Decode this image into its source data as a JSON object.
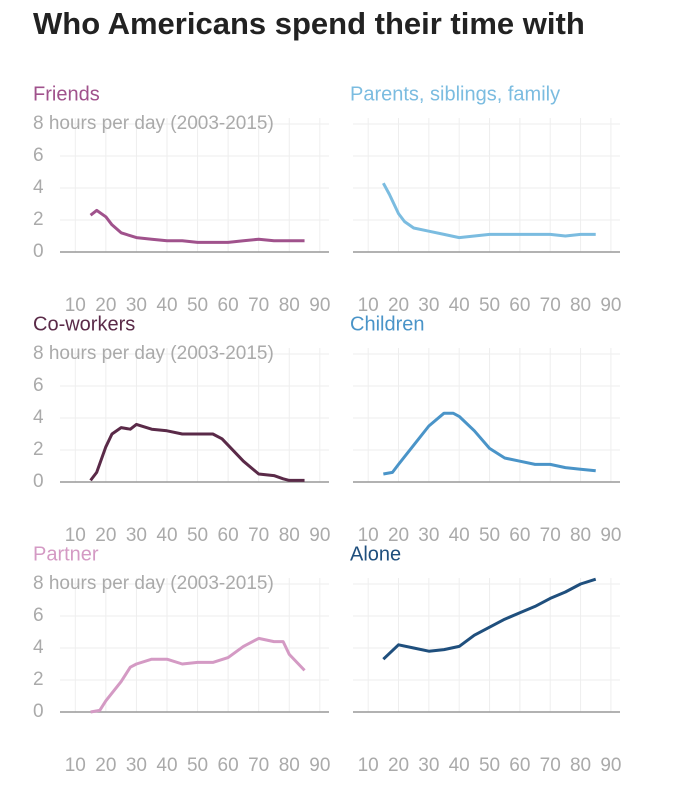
{
  "title": "Who Americans spend their time with",
  "chart_data": [
    {
      "type": "line",
      "title": "Friends",
      "color": "#a0528c",
      "show_ytick_labels": true,
      "x": [
        15,
        17,
        20,
        22,
        25,
        30,
        35,
        40,
        45,
        50,
        55,
        60,
        65,
        70,
        75,
        80,
        85
      ],
      "values": [
        2.3,
        2.6,
        2.2,
        1.7,
        1.2,
        0.9,
        0.8,
        0.7,
        0.7,
        0.6,
        0.6,
        0.6,
        0.7,
        0.8,
        0.7,
        0.7,
        0.7
      ],
      "xlim": [
        5,
        93
      ],
      "ylim": [
        0,
        8
      ],
      "xticks": [
        10,
        20,
        30,
        40,
        50,
        60,
        70,
        80,
        90
      ],
      "yticks": [
        0,
        2,
        4,
        6,
        {
          "value": 8,
          "label": "8 hours per day (2003-2015)"
        }
      ],
      "grid": true
    },
    {
      "type": "line",
      "title": "Parents, siblings, family",
      "color": "#7bbce0",
      "show_ytick_labels": false,
      "x": [
        15,
        17,
        20,
        22,
        25,
        30,
        35,
        40,
        45,
        50,
        55,
        60,
        65,
        70,
        75,
        80,
        85
      ],
      "values": [
        4.3,
        3.6,
        2.4,
        1.9,
        1.5,
        1.3,
        1.1,
        0.9,
        1.0,
        1.1,
        1.1,
        1.1,
        1.1,
        1.1,
        1.0,
        1.1,
        1.1
      ],
      "xlim": [
        5,
        93
      ],
      "ylim": [
        0,
        8
      ],
      "xticks": [
        10,
        20,
        30,
        40,
        50,
        60,
        70,
        80,
        90
      ],
      "yticks": [
        0,
        2,
        4,
        6,
        8
      ],
      "grid": true
    },
    {
      "type": "line",
      "title": "Co-workers",
      "color": "#5a2a48",
      "show_ytick_labels": true,
      "x": [
        15,
        17,
        20,
        22,
        25,
        28,
        30,
        35,
        40,
        45,
        50,
        55,
        58,
        60,
        65,
        70,
        75,
        78,
        80,
        85
      ],
      "values": [
        0.1,
        0.6,
        2.2,
        3.0,
        3.4,
        3.3,
        3.6,
        3.3,
        3.2,
        3.0,
        3.0,
        3.0,
        2.7,
        2.3,
        1.3,
        0.5,
        0.4,
        0.2,
        0.1,
        0.1
      ],
      "xlim": [
        5,
        93
      ],
      "ylim": [
        0,
        8
      ],
      "xticks": [
        10,
        20,
        30,
        40,
        50,
        60,
        70,
        80,
        90
      ],
      "yticks": [
        0,
        2,
        4,
        6,
        {
          "value": 8,
          "label": "8 hours per day (2003-2015)"
        }
      ],
      "grid": true
    },
    {
      "type": "line",
      "title": "Children",
      "color": "#4a94c8",
      "show_ytick_labels": false,
      "x": [
        15,
        18,
        20,
        25,
        30,
        35,
        38,
        40,
        45,
        50,
        55,
        60,
        65,
        70,
        75,
        80,
        85
      ],
      "values": [
        0.5,
        0.6,
        1.1,
        2.3,
        3.5,
        4.3,
        4.3,
        4.1,
        3.2,
        2.1,
        1.5,
        1.3,
        1.1,
        1.1,
        0.9,
        0.8,
        0.7
      ],
      "xlim": [
        5,
        93
      ],
      "ylim": [
        0,
        8
      ],
      "xticks": [
        10,
        20,
        30,
        40,
        50,
        60,
        70,
        80,
        90
      ],
      "yticks": [
        0,
        2,
        4,
        6,
        8
      ],
      "grid": true
    },
    {
      "type": "line",
      "title": "Partner",
      "color": "#d49ac4",
      "show_ytick_labels": true,
      "x": [
        15,
        18,
        20,
        25,
        28,
        30,
        35,
        40,
        45,
        50,
        55,
        60,
        65,
        70,
        75,
        78,
        80,
        85
      ],
      "values": [
        0,
        0.1,
        0.7,
        1.9,
        2.8,
        3.0,
        3.3,
        3.3,
        3.0,
        3.1,
        3.1,
        3.4,
        4.1,
        4.6,
        4.4,
        4.4,
        3.6,
        2.6
      ],
      "xlim": [
        5,
        93
      ],
      "ylim": [
        0,
        8
      ],
      "xticks": [
        10,
        20,
        30,
        40,
        50,
        60,
        70,
        80,
        90
      ],
      "yticks": [
        0,
        2,
        4,
        6,
        {
          "value": 8,
          "label": "8 hours per day (2003-2015)"
        }
      ],
      "grid": true
    },
    {
      "type": "line",
      "title": "Alone",
      "color": "#1f4f7d",
      "show_ytick_labels": false,
      "x": [
        15,
        20,
        25,
        30,
        35,
        40,
        45,
        50,
        55,
        60,
        65,
        70,
        75,
        80,
        85
      ],
      "values": [
        3.3,
        4.2,
        4.0,
        3.8,
        3.9,
        4.1,
        4.8,
        5.3,
        5.8,
        6.2,
        6.6,
        7.1,
        7.5,
        8.0,
        8.3
      ],
      "xlim": [
        5,
        93
      ],
      "ylim": [
        0,
        8
      ],
      "xticks": [
        10,
        20,
        30,
        40,
        50,
        60,
        70,
        80,
        90
      ],
      "yticks": [
        0,
        2,
        4,
        6,
        8
      ],
      "grid": true
    }
  ]
}
